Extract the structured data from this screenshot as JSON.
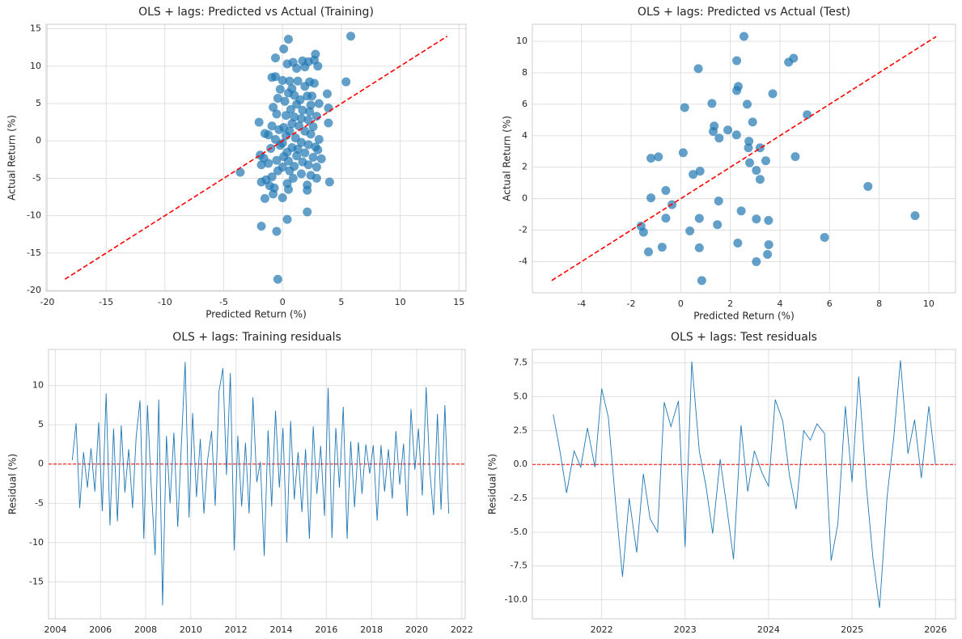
{
  "chart_data": [
    {
      "type": "scatter",
      "title": "OLS + lags: Predicted vs Actual (Training)",
      "xlabel": "Predicted Return (%)",
      "ylabel": "Actual Return (%)",
      "color": "#1f77b4",
      "grid": true,
      "xlim": [
        -20.1,
        15.6
      ],
      "ylim": [
        -20.1,
        15.6
      ],
      "xticks": [
        -20,
        -15,
        -10,
        -5,
        0,
        5,
        10,
        15
      ],
      "yticks": [
        -20,
        -15,
        -10,
        -5,
        0,
        5,
        10,
        15
      ],
      "reference_line": {
        "x": [
          -18.5,
          14.0
        ],
        "y": [
          -18.5,
          14.0
        ],
        "color": "#ff0000"
      },
      "x": [
        5.8,
        0.5,
        0.1,
        2.8,
        -0.6,
        1.7,
        2.7,
        0.4,
        0.9,
        2.2,
        1.9,
        3.0,
        1.2,
        -0.9,
        -0.6,
        0.0,
        0.6,
        1.3,
        2.3,
        2.7,
        5.4,
        1.9,
        0.8,
        -0.2,
        3.8,
        0.5,
        1.0,
        2.1,
        2.5,
        -0.4,
        1.5,
        0.2,
        3.1,
        1.2,
        2.4,
        -0.8,
        0.7,
        3.9,
        1.7,
        2.3,
        -0.5,
        0.3,
        1.0,
        2.9,
        1.6,
        2.2,
        -2.0,
        3.9,
        0.8,
        -0.9,
        0.1,
        1.4,
        2.6,
        -0.3,
        0.6,
        1.9,
        -1.5,
        -1.2,
        0.3,
        2.4,
        1.1,
        -0.6,
        3.1,
        0.0,
        1.6,
        2.2,
        -0.2,
        0.8,
        2.8,
        -1.0,
        1.3,
        3.0,
        0.4,
        1.9,
        -1.9,
        -1.6,
        0.1,
        1.2,
        2.6,
        3.3,
        -0.5,
        0.5,
        1.7,
        -1.2,
        2.2,
        -1.8,
        0.0,
        1.0,
        2.9,
        -0.4,
        -3.6,
        0.6,
        1.6,
        2.4,
        -0.9,
        0.9,
        2.9,
        -1.4,
        4.0,
        -1.8,
        0.4,
        2.1,
        -1.1,
        -0.7,
        0.5,
        2.1,
        -0.8,
        -1.5,
        0.0,
        2.1,
        0.4,
        -1.8,
        -0.5,
        -0.4
      ],
      "values": [
        14.0,
        13.6,
        12.3,
        11.6,
        11.1,
        10.7,
        10.8,
        10.3,
        10.5,
        10.6,
        9.9,
        10.0,
        9.7,
        8.5,
        8.6,
        8.1,
        8.0,
        8.0,
        7.9,
        7.7,
        7.9,
        7.3,
        7.0,
        6.9,
        6.3,
        6.4,
        6.1,
        6.0,
        6.0,
        5.7,
        5.5,
        5.3,
        5.0,
        4.9,
        4.8,
        4.5,
        4.2,
        4.4,
        4.1,
        3.9,
        3.6,
        3.4,
        3.2,
        3.3,
        3.0,
        2.8,
        2.5,
        2.4,
        2.3,
        2.0,
        1.8,
        2.0,
        1.9,
        1.5,
        1.3,
        1.3,
        1.0,
        0.8,
        0.7,
        0.9,
        0.4,
        0.2,
        0.2,
        -0.3,
        -0.2,
        -0.5,
        -0.6,
        -0.9,
        -0.8,
        -1.0,
        -1.1,
        -1.2,
        -1.5,
        -1.6,
        -1.9,
        -2.3,
        -2.1,
        -2.0,
        -2.2,
        -2.4,
        -2.6,
        -2.7,
        -2.8,
        -3.0,
        -3.2,
        -3.2,
        -3.5,
        -3.4,
        -3.5,
        -4.0,
        -4.2,
        -4.0,
        -4.4,
        -4.6,
        -4.8,
        -5.0,
        -5.0,
        -5.2,
        -5.5,
        -5.5,
        -5.7,
        -5.9,
        -6.0,
        -6.3,
        -6.5,
        -6.6,
        -7.1,
        -7.7,
        -7.6,
        -9.5,
        -10.5,
        -11.4,
        -12.1,
        -18.5
      ]
    },
    {
      "type": "scatter",
      "title": "OLS + lags: Predicted vs Actual (Test)",
      "xlabel": "Predicted Return (%)",
      "ylabel": "Actual Return (%)",
      "color": "#1f77b4",
      "grid": true,
      "xlim": [
        -5.98,
        11.08
      ],
      "ylim": [
        -5.98,
        11.08
      ],
      "xticks": [
        -4,
        -2,
        0,
        2,
        4,
        6,
        8,
        10
      ],
      "yticks": [
        -4,
        -2,
        0,
        2,
        4,
        6,
        8,
        10
      ],
      "reference_line": {
        "x": [
          -5.2,
          10.3
        ],
        "y": [
          -5.2,
          10.3
        ],
        "color": "#ff0000"
      },
      "x": [
        2.55,
        2.26,
        0.71,
        4.35,
        4.55,
        2.32,
        2.26,
        3.71,
        1.26,
        2.68,
        0.16,
        5.1,
        2.9,
        1.35,
        1.31,
        1.9,
        1.55,
        2.25,
        2.75,
        3.2,
        2.73,
        4.62,
        0.1,
        3.43,
        2.78,
        3.05,
        -1.2,
        -0.9,
        0.78,
        0.5,
        3.2,
        -1.2,
        -0.6,
        1.53,
        7.55,
        -0.35,
        2.44,
        -0.6,
        0.75,
        3.05,
        3.54,
        1.48,
        9.45,
        -1.6,
        -1.5,
        0.37,
        5.8,
        2.3,
        3.55,
        -0.75,
        0.75,
        -1.3,
        3.5,
        3.05,
        0.85
      ],
      "values": [
        10.31,
        8.77,
        8.26,
        8.67,
        8.92,
        7.13,
        6.87,
        6.67,
        6.05,
        6.0,
        5.79,
        5.33,
        4.87,
        4.62,
        4.27,
        4.36,
        3.85,
        4.05,
        3.65,
        3.23,
        3.23,
        2.67,
        2.92,
        2.41,
        2.28,
        1.8,
        2.57,
        2.66,
        1.75,
        1.54,
        1.23,
        0.05,
        0.52,
        -0.15,
        0.78,
        -0.38,
        -0.78,
        -1.24,
        -1.25,
        -1.29,
        -1.38,
        -1.65,
        -1.08,
        -1.74,
        -2.13,
        -2.05,
        -2.46,
        -2.82,
        -2.92,
        -3.08,
        -3.12,
        -3.38,
        -3.54,
        -4.0,
        -5.2
      ]
    },
    {
      "type": "line",
      "title": "OLS + lags: Training residuals",
      "ylabel": "Residual (%)",
      "color": "#1f77b4",
      "grid": true,
      "hline": 0,
      "hline_color": "#ff0000",
      "xlim": [
        2003.7,
        2022.15
      ],
      "ylim": [
        -19.7,
        14.6
      ],
      "xticks": [
        2004,
        2006,
        2008,
        2010,
        2012,
        2014,
        2016,
        2018,
        2020,
        2022
      ],
      "yticks": [
        -15,
        -10,
        -5,
        0,
        5,
        10
      ],
      "x": [
        2004.75,
        2004.92,
        2005.08,
        2005.25,
        2005.42,
        2005.58,
        2005.75,
        2005.92,
        2006.08,
        2006.25,
        2006.42,
        2006.58,
        2006.75,
        2006.92,
        2007.08,
        2007.25,
        2007.42,
        2007.58,
        2007.75,
        2007.92,
        2008.08,
        2008.25,
        2008.42,
        2008.58,
        2008.75,
        2008.92,
        2009.08,
        2009.25,
        2009.42,
        2009.58,
        2009.75,
        2009.92,
        2010.08,
        2010.25,
        2010.42,
        2010.58,
        2010.75,
        2010.92,
        2011.08,
        2011.25,
        2011.42,
        2011.58,
        2011.75,
        2011.92,
        2012.08,
        2012.25,
        2012.42,
        2012.58,
        2012.75,
        2012.92,
        2013.08,
        2013.25,
        2013.42,
        2013.58,
        2013.75,
        2013.92,
        2014.08,
        2014.25,
        2014.42,
        2014.58,
        2014.75,
        2014.92,
        2015.08,
        2015.25,
        2015.42,
        2015.58,
        2015.75,
        2015.92,
        2016.08,
        2016.25,
        2016.42,
        2016.58,
        2016.75,
        2016.92,
        2017.08,
        2017.25,
        2017.42,
        2017.58,
        2017.75,
        2017.92,
        2018.08,
        2018.25,
        2018.42,
        2018.58,
        2018.75,
        2018.92,
        2019.08,
        2019.25,
        2019.42,
        2019.58,
        2019.75,
        2019.92,
        2020.08,
        2020.25,
        2020.42,
        2020.58,
        2020.75,
        2020.92,
        2021.08,
        2021.25,
        2021.42
      ],
      "values": [
        0.5,
        5.2,
        -5.6,
        1.5,
        -3.0,
        2.0,
        -3.5,
        5.3,
        -6.0,
        9.0,
        -7.8,
        4.5,
        -7.3,
        4.9,
        -3.6,
        1.9,
        -5.6,
        3.5,
        8.1,
        -9.5,
        7.5,
        -3.1,
        -11.6,
        8.2,
        -18.0,
        3.6,
        -5.0,
        4.0,
        -8.0,
        2.4,
        13.0,
        -6.8,
        6.5,
        -4.2,
        3.2,
        -6.3,
        0.7,
        4.2,
        -5.3,
        9.3,
        12.2,
        -1.4,
        11.6,
        -11.0,
        3.6,
        -5.4,
        2.7,
        -6.3,
        8.5,
        -2.3,
        0.3,
        -11.7,
        4.3,
        -5.4,
        6.8,
        -3.0,
        4.6,
        -10.0,
        5.5,
        -4.5,
        1.5,
        -6.1,
        1.9,
        -9.5,
        4.8,
        -3.8,
        2.3,
        -6.6,
        9.7,
        -9.4,
        4.6,
        -3.0,
        7.3,
        -9.5,
        2.9,
        -5.5,
        2.8,
        -3.8,
        2.5,
        -1.2,
        2.4,
        -7.2,
        2.4,
        -3.5,
        1.9,
        -4.4,
        4.2,
        -2.6,
        2.6,
        -6.6,
        7.0,
        -0.7,
        4.5,
        -4.0,
        9.8,
        -0.8,
        -6.5,
        6.4,
        -5.8,
        7.5,
        -6.3
      ]
    },
    {
      "type": "line",
      "title": "OLS + lags: Test residuals",
      "ylabel": "Residual (%)",
      "color": "#1f77b4",
      "grid": true,
      "hline": 0,
      "hline_color": "#ff0000",
      "xlim": [
        2021.17,
        2026.24
      ],
      "ylim": [
        -11.4,
        8.5
      ],
      "xticks": [
        2022,
        2023,
        2024,
        2025,
        2026
      ],
      "yticks": [
        {
          "value": -10,
          "label": "-10.0"
        },
        -7.5,
        {
          "value": -5,
          "label": "-5.0"
        },
        -2.5,
        {
          "value": 0,
          "label": "0.0"
        },
        2.5,
        {
          "value": 5,
          "label": "5.0"
        },
        7.5
      ],
      "x": [
        2021.42,
        2021.5,
        2021.58,
        2021.67,
        2021.75,
        2021.83,
        2021.92,
        2022,
        2022.08,
        2022.17,
        2022.25,
        2022.33,
        2022.42,
        2022.5,
        2022.58,
        2022.67,
        2022.75,
        2022.83,
        2022.92,
        2023,
        2023.08,
        2023.17,
        2023.25,
        2023.33,
        2023.42,
        2023.5,
        2023.58,
        2023.67,
        2023.75,
        2023.83,
        2023.92,
        2024,
        2024.08,
        2024.17,
        2024.25,
        2024.33,
        2024.42,
        2024.5,
        2024.58,
        2024.67,
        2024.75,
        2024.83,
        2024.92,
        2025,
        2025.08,
        2025.17,
        2025.25,
        2025.33,
        2025.42,
        2025.5,
        2025.58,
        2025.67,
        2025.75,
        2025.83,
        2025.92,
        2026
      ],
      "values": [
        3.7,
        1.0,
        -2.1,
        1.0,
        -0.2,
        2.7,
        -0.2,
        5.6,
        3.5,
        -3.0,
        -8.3,
        -2.5,
        -6.5,
        -0.7,
        -4.0,
        -5.0,
        4.6,
        2.8,
        4.7,
        -6.1,
        7.6,
        1.0,
        -1.6,
        -5.1,
        0.4,
        -3.2,
        -7.0,
        2.9,
        -2.0,
        1.0,
        -0.6,
        -1.6,
        4.8,
        3.2,
        -0.8,
        -3.3,
        2.5,
        1.8,
        3.0,
        2.3,
        -7.1,
        -4.4,
        4.3,
        -1.3,
        6.5,
        -1.5,
        -6.9,
        -10.6,
        -2.4,
        2.0,
        7.7,
        0.8,
        3.3,
        -1.0,
        4.3,
        0.0
      ]
    }
  ]
}
